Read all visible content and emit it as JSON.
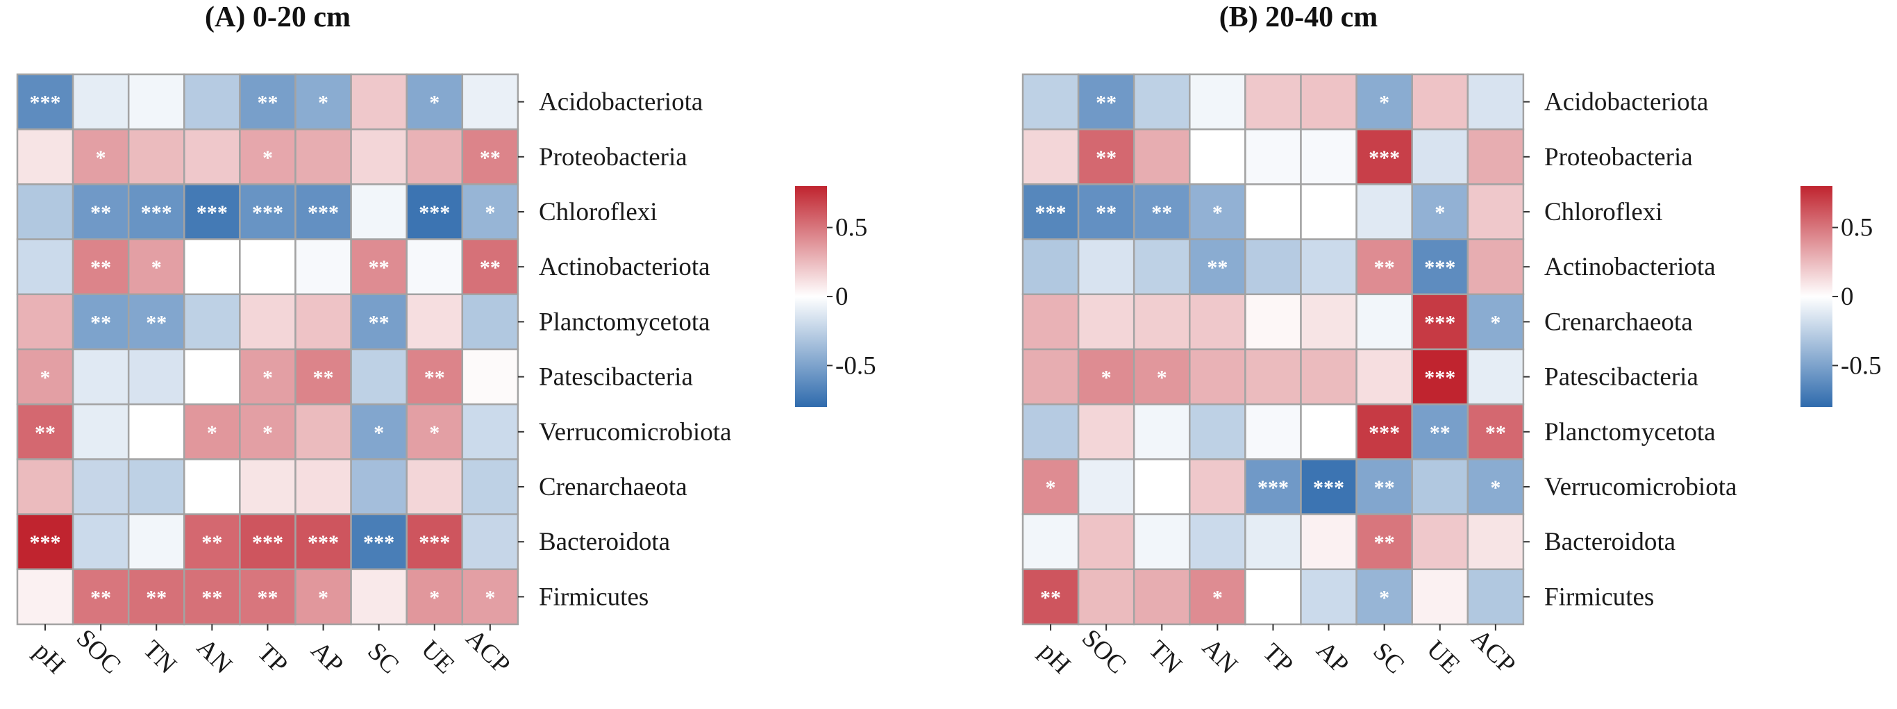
{
  "colors": {
    "negative": "#2f6bad",
    "zero": "#ffffff",
    "positive": "#c0242f",
    "grid": "#a3a3a3",
    "significance_text": "#ffffff"
  },
  "chart_data": [
    {
      "type": "heatmap",
      "title": "(A) 0-20 cm",
      "columns": [
        "pH",
        "SOC",
        "TN",
        "AN",
        "TP",
        "AP",
        "SC",
        "UE",
        "ACP"
      ],
      "rows": [
        "Acidobacteriota",
        "Proteobacteria",
        "Chloroflexi",
        "Actinobacteriota",
        "Planctomycetota",
        "Patescibacteria",
        "Verrucomicrobiota",
        "Crenarchaeota",
        "Bacteroidota",
        "Firmicutes"
      ],
      "values": [
        [
          -0.62,
          -0.1,
          -0.05,
          -0.28,
          -0.52,
          -0.45,
          0.2,
          -0.47,
          -0.08
        ],
        [
          0.1,
          0.35,
          0.25,
          0.2,
          0.32,
          0.3,
          0.15,
          0.28,
          0.45
        ],
        [
          -0.3,
          -0.55,
          -0.58,
          -0.72,
          -0.58,
          -0.6,
          -0.05,
          -0.75,
          -0.4
        ],
        [
          -0.2,
          0.45,
          0.35,
          0.0,
          0.0,
          -0.03,
          0.42,
          -0.03,
          0.52
        ],
        [
          0.28,
          -0.5,
          -0.48,
          -0.25,
          0.15,
          0.22,
          -0.52,
          0.12,
          -0.3
        ],
        [
          0.35,
          -0.12,
          -0.15,
          0.0,
          0.35,
          0.45,
          -0.25,
          0.45,
          0.02
        ],
        [
          0.55,
          -0.1,
          0.0,
          0.38,
          0.35,
          0.25,
          -0.48,
          0.35,
          -0.2
        ],
        [
          0.25,
          -0.22,
          -0.25,
          0.0,
          0.1,
          0.12,
          -0.35,
          0.15,
          -0.25
        ],
        [
          0.82,
          -0.2,
          -0.05,
          0.55,
          0.62,
          0.62,
          -0.7,
          0.62,
          -0.22
        ],
        [
          0.05,
          0.5,
          0.52,
          0.52,
          0.5,
          0.38,
          0.08,
          0.38,
          0.35
        ]
      ],
      "significance": [
        [
          "***",
          "",
          "",
          "",
          "**",
          "*",
          "",
          "*",
          ""
        ],
        [
          "",
          "*",
          "",
          "",
          "*",
          "",
          "",
          "",
          "**"
        ],
        [
          "",
          "**",
          "***",
          "***",
          "***",
          "***",
          "",
          "***",
          "*"
        ],
        [
          "",
          "**",
          "*",
          "",
          "",
          "",
          "**",
          "",
          "**"
        ],
        [
          "",
          "**",
          "**",
          "",
          "",
          "",
          "**",
          "",
          ""
        ],
        [
          "*",
          "",
          "",
          "",
          "*",
          "**",
          "",
          "**",
          ""
        ],
        [
          "**",
          "",
          "",
          "*",
          "*",
          "",
          "*",
          "*",
          ""
        ],
        [
          "",
          "",
          "",
          "",
          "",
          "",
          "",
          "",
          ""
        ],
        [
          "***",
          "",
          "",
          "**",
          "***",
          "***",
          "***",
          "***",
          ""
        ],
        [
          "",
          "**",
          "**",
          "**",
          "**",
          "*",
          "",
          "*",
          "*"
        ]
      ],
      "color_range": [
        -0.8,
        0.8
      ],
      "colorbar_ticks": [
        {
          "value": 0.5,
          "label": "0.5"
        },
        {
          "value": 0,
          "label": "0"
        },
        {
          "value": -0.5,
          "label": "-0.5"
        }
      ]
    },
    {
      "type": "heatmap",
      "title": "(B) 20-40 cm",
      "columns": [
        "pH",
        "SOC",
        "TN",
        "AN",
        "TP",
        "AP",
        "SC",
        "UE",
        "ACP"
      ],
      "rows": [
        "Acidobacteriota",
        "Proteobacteria",
        "Chloroflexi",
        "Actinobacteriota",
        "Crenarchaeota",
        "Patescibacteria",
        "Planctomycetota",
        "Verrucomicrobiota",
        "Bacteroidota",
        "Firmicutes"
      ],
      "values": [
        [
          -0.25,
          -0.55,
          -0.25,
          -0.05,
          0.2,
          0.22,
          -0.45,
          0.22,
          -0.15
        ],
        [
          0.15,
          0.55,
          0.3,
          0.0,
          -0.03,
          -0.03,
          0.7,
          -0.15,
          0.3
        ],
        [
          -0.65,
          -0.6,
          -0.55,
          -0.42,
          0.0,
          0.0,
          -0.12,
          -0.42,
          0.2
        ],
        [
          -0.3,
          -0.15,
          -0.25,
          -0.45,
          -0.28,
          -0.2,
          0.42,
          -0.62,
          0.3
        ],
        [
          0.28,
          0.15,
          0.18,
          0.2,
          0.03,
          0.1,
          -0.05,
          0.72,
          -0.45
        ],
        [
          0.3,
          0.42,
          0.38,
          0.28,
          0.25,
          0.25,
          0.12,
          0.8,
          -0.1
        ],
        [
          -0.28,
          0.15,
          -0.05,
          -0.25,
          -0.03,
          0.0,
          0.72,
          -0.52,
          0.55
        ],
        [
          0.42,
          -0.08,
          0.0,
          0.2,
          -0.55,
          -0.75,
          -0.48,
          -0.3,
          -0.45
        ],
        [
          -0.05,
          0.22,
          -0.05,
          -0.2,
          -0.1,
          0.05,
          0.5,
          0.2,
          0.1
        ],
        [
          0.62,
          0.25,
          0.3,
          0.42,
          0.0,
          -0.2,
          -0.4,
          0.05,
          -0.3
        ]
      ],
      "significance": [
        [
          "",
          "**",
          "",
          "",
          "",
          "",
          "*",
          "",
          ""
        ],
        [
          "",
          "**",
          "",
          "",
          "",
          "",
          "***",
          "",
          ""
        ],
        [
          "***",
          "**",
          "**",
          "*",
          "",
          "",
          "",
          "*",
          ""
        ],
        [
          "",
          "",
          "",
          "**",
          "",
          "",
          "**",
          "***",
          ""
        ],
        [
          "",
          "",
          "",
          "",
          "",
          "",
          "",
          "***",
          "*"
        ],
        [
          "",
          "*",
          "*",
          "",
          "",
          "",
          "",
          "***",
          ""
        ],
        [
          "",
          "",
          "",
          "",
          "",
          "",
          "***",
          "**",
          "**"
        ],
        [
          "*",
          "",
          "",
          "",
          "***",
          "***",
          "**",
          "",
          "*"
        ],
        [
          "",
          "",
          "",
          "",
          "",
          "",
          "**",
          "",
          ""
        ],
        [
          "**",
          "",
          "",
          "*",
          "",
          "",
          "*",
          "",
          ""
        ]
      ],
      "color_range": [
        -0.8,
        0.8
      ],
      "colorbar_ticks": [
        {
          "value": 0.5,
          "label": "0.5"
        },
        {
          "value": 0,
          "label": "0"
        },
        {
          "value": -0.5,
          "label": "-0.5"
        }
      ]
    }
  ]
}
